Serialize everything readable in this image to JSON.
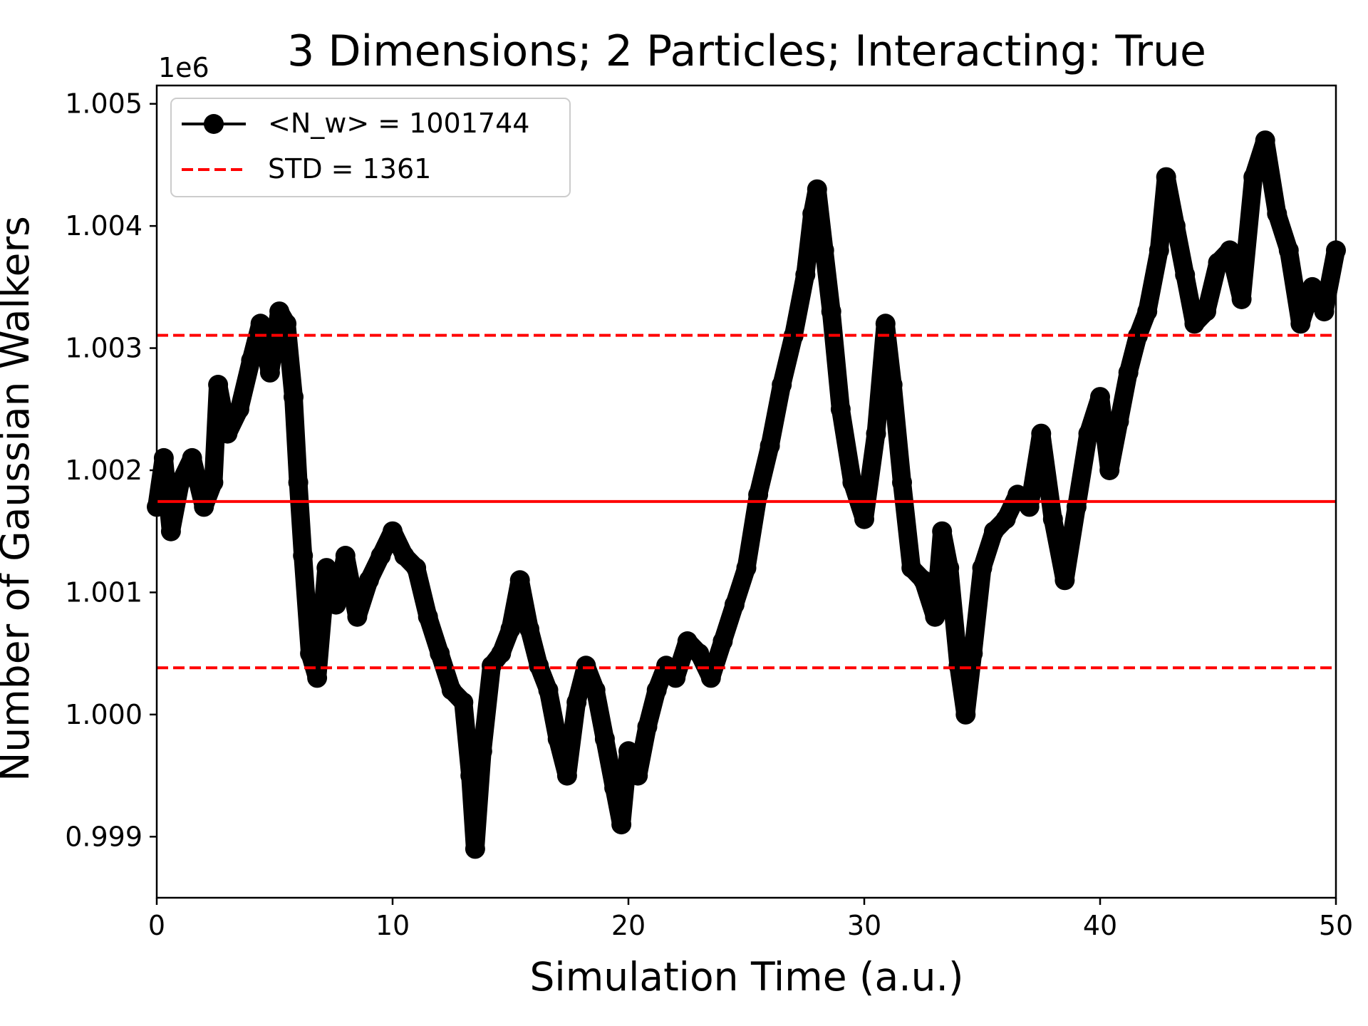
{
  "chart_data": {
    "type": "line",
    "title": "3 Dimensions; 2 Particles; Interacting: True",
    "xlabel": "Simulation Time (a.u.)",
    "ylabel": "Number of Gaussian Walkers",
    "y_offset_label": "1e6",
    "xlim": [
      0,
      50
    ],
    "ylim": [
      0.9985,
      1.00515
    ],
    "x_ticks": [
      0,
      10,
      20,
      30,
      40,
      50
    ],
    "x_tick_labels": [
      "0",
      "10",
      "20",
      "30",
      "40",
      "50"
    ],
    "y_ticks": [
      0.999,
      1.0,
      1.001,
      1.002,
      1.003,
      1.004,
      1.005
    ],
    "y_tick_labels": [
      "0.999",
      "1.000",
      "1.001",
      "1.002",
      "1.003",
      "1.004",
      "1.005"
    ],
    "grid": false,
    "legend_position": "upper-left",
    "series": [
      {
        "name": "<N_w> = 1001744",
        "style": "line-with-markers",
        "color": "#000000",
        "x": [
          0,
          0.3,
          0.6,
          1.0,
          1.5,
          2.0,
          2.4,
          2.6,
          3.0,
          3.5,
          4.0,
          4.4,
          4.8,
          5.2,
          5.5,
          5.8,
          6.0,
          6.2,
          6.5,
          6.8,
          7.2,
          7.6,
          8.0,
          8.5,
          9.0,
          9.5,
          10.0,
          10.5,
          11.0,
          11.5,
          12.0,
          12.5,
          13.0,
          13.3,
          13.5,
          13.8,
          14.2,
          14.6,
          15.0,
          15.4,
          15.8,
          16.2,
          16.6,
          17.0,
          17.4,
          17.8,
          18.2,
          18.6,
          19.0,
          19.4,
          19.7,
          20.0,
          20.4,
          20.8,
          21.2,
          21.6,
          22.0,
          22.5,
          23.0,
          23.5,
          24.0,
          24.5,
          25.0,
          25.5,
          26.0,
          26.5,
          27.0,
          27.5,
          27.8,
          28.0,
          28.3,
          28.6,
          29.0,
          29.5,
          30.0,
          30.5,
          30.9,
          31.2,
          31.6,
          32.0,
          32.5,
          33.0,
          33.3,
          33.6,
          34.0,
          34.3,
          34.6,
          35.0,
          35.5,
          36.0,
          36.5,
          37.0,
          37.5,
          38.0,
          38.5,
          39.0,
          39.5,
          40.0,
          40.4,
          40.8,
          41.2,
          41.6,
          42.0,
          42.5,
          42.8,
          43.2,
          43.6,
          44.0,
          44.5,
          45.0,
          45.5,
          46.0,
          46.5,
          47.0,
          47.5,
          48.0,
          48.5,
          49.0,
          49.5,
          50.0
        ],
        "y": [
          1.0017,
          1.0021,
          1.0015,
          1.0019,
          1.0021,
          1.0017,
          1.0019,
          1.0027,
          1.0023,
          1.0025,
          1.0029,
          1.0032,
          1.0028,
          1.0033,
          1.0032,
          1.0026,
          1.0019,
          1.0013,
          1.0005,
          1.0003,
          1.0012,
          1.0009,
          1.0013,
          1.0008,
          1.0011,
          1.0013,
          1.0015,
          1.0013,
          1.0012,
          1.0008,
          1.0005,
          1.0002,
          1.0001,
          0.9995,
          0.9989,
          0.9997,
          1.0004,
          1.0005,
          1.0007,
          1.0011,
          1.0007,
          1.0004,
          1.0002,
          0.9998,
          0.9995,
          1.0001,
          1.0004,
          1.0002,
          0.9998,
          0.9994,
          0.9991,
          0.9997,
          0.9995,
          0.9999,
          1.0002,
          1.0004,
          1.0003,
          1.0006,
          1.0005,
          1.0003,
          1.0006,
          1.0009,
          1.0012,
          1.0018,
          1.0022,
          1.0027,
          1.0031,
          1.0036,
          1.0041,
          1.0043,
          1.0038,
          1.0033,
          1.0025,
          1.0019,
          1.0016,
          1.0023,
          1.0032,
          1.0027,
          1.0019,
          1.0012,
          1.0011,
          1.0008,
          1.0015,
          1.0012,
          1.0004,
          1.0,
          1.0005,
          1.0012,
          1.0015,
          1.0016,
          1.0018,
          1.0017,
          1.0023,
          1.0016,
          1.0011,
          1.0017,
          1.0023,
          1.0026,
          1.002,
          1.0024,
          1.0028,
          1.0031,
          1.0033,
          1.0038,
          1.0044,
          1.004,
          1.0036,
          1.0032,
          1.0033,
          1.0037,
          1.0038,
          1.0034,
          1.0044,
          1.0047,
          1.0041,
          1.0038,
          1.0032,
          1.0035,
          1.0033,
          1.0038
        ]
      },
      {
        "name": "STD = 1361",
        "style": "dashed",
        "color": "#ff0000",
        "bounds": [
          1.000383,
          1.003105
        ]
      }
    ],
    "mean_line": {
      "value": 1.001744,
      "color": "#ff0000",
      "style": "solid"
    }
  }
}
